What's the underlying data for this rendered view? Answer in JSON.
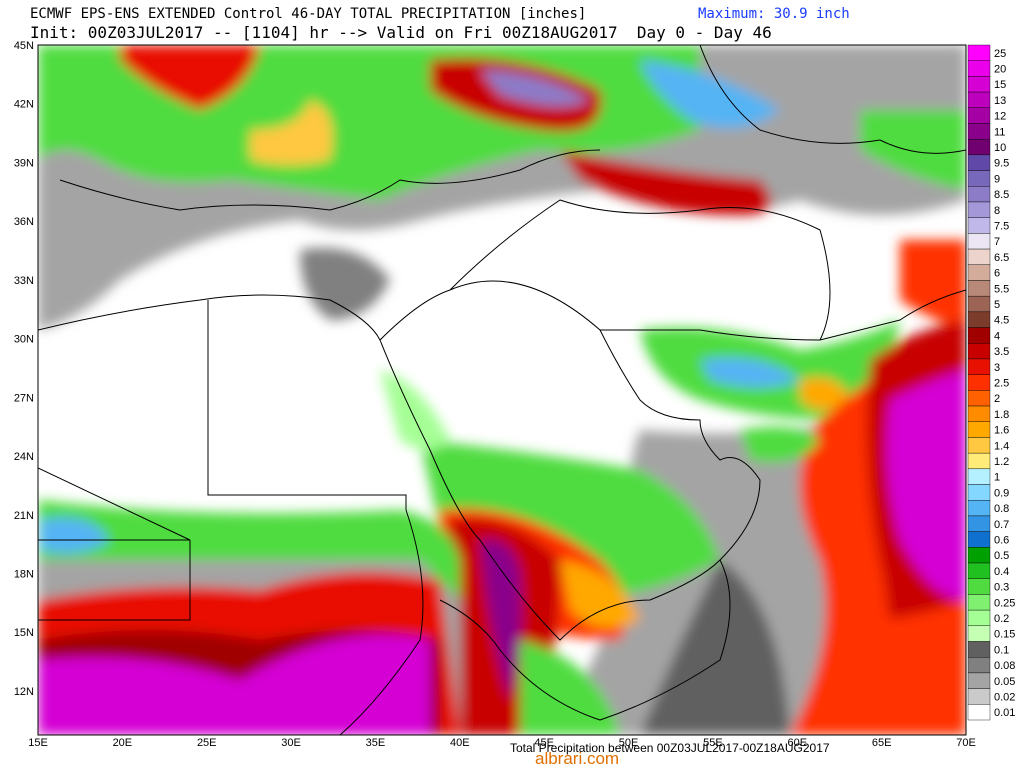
{
  "header": {
    "title": "ECMWF EPS-ENS EXTENDED Control 46-DAY TOTAL PRECIPITATION [inches]",
    "maximum": "Maximum: 30.9 inch",
    "init": "Init: 00Z03JUL2017 -- [1104] hr --> Valid on Fri 00Z18AUG2017  Day 0 - Day 46"
  },
  "map": {
    "lat_labels": [
      "45N",
      "42N",
      "39N",
      "36N",
      "33N",
      "30N",
      "27N",
      "24N",
      "21N",
      "18N",
      "15N",
      "12N"
    ],
    "lon_labels": [
      "15E",
      "20E",
      "25E",
      "30E",
      "35E",
      "40E",
      "45E",
      "50E",
      "55E",
      "60E",
      "65E",
      "70E"
    ]
  },
  "legend": {
    "levels": [
      {
        "label": "25",
        "color": "#ff00ff"
      },
      {
        "label": "20",
        "color": "#ea00ea"
      },
      {
        "label": "15",
        "color": "#d400d4"
      },
      {
        "label": "13",
        "color": "#bc00bc"
      },
      {
        "label": "12",
        "color": "#a400a4"
      },
      {
        "label": "11",
        "color": "#8a008a"
      },
      {
        "label": "10",
        "color": "#700070"
      },
      {
        "label": "9.5",
        "color": "#6048a8"
      },
      {
        "label": "9",
        "color": "#7868bc"
      },
      {
        "label": "8.5",
        "color": "#8c7cc8"
      },
      {
        "label": "8",
        "color": "#a498d8"
      },
      {
        "label": "7.5",
        "color": "#c0b8e8"
      },
      {
        "label": "7",
        "color": "#ece6f4"
      },
      {
        "label": "6.5",
        "color": "#ecd4cc"
      },
      {
        "label": "6",
        "color": "#d4ac9c"
      },
      {
        "label": "5.5",
        "color": "#b88878"
      },
      {
        "label": "5",
        "color": "#9c6454"
      },
      {
        "label": "4.5",
        "color": "#7c3c2c"
      },
      {
        "label": "4",
        "color": "#a00000"
      },
      {
        "label": "3.5",
        "color": "#c80000"
      },
      {
        "label": "3",
        "color": "#e81000"
      },
      {
        "label": "2.5",
        "color": "#ff3000"
      },
      {
        "label": "2",
        "color": "#ff6000"
      },
      {
        "label": "1.8",
        "color": "#ff8c00"
      },
      {
        "label": "1.6",
        "color": "#ffa800"
      },
      {
        "label": "1.4",
        "color": "#ffc840"
      },
      {
        "label": "1.2",
        "color": "#ffec78"
      },
      {
        "label": "1",
        "color": "#b4f0ff"
      },
      {
        "label": "0.9",
        "color": "#84d8ff"
      },
      {
        "label": "0.8",
        "color": "#54b4f4"
      },
      {
        "label": "0.7",
        "color": "#3494e4"
      },
      {
        "label": "0.6",
        "color": "#1070d0"
      },
      {
        "label": "0.5",
        "color": "#00a000"
      },
      {
        "label": "0.4",
        "color": "#20c020"
      },
      {
        "label": "0.3",
        "color": "#50dc40"
      },
      {
        "label": "0.25",
        "color": "#80f070"
      },
      {
        "label": "0.2",
        "color": "#a4ff94"
      },
      {
        "label": "0.15",
        "color": "#c4ffb4"
      },
      {
        "label": "0.1",
        "color": "#606060"
      },
      {
        "label": "0.08",
        "color": "#808080"
      },
      {
        "label": "0.05",
        "color": "#a4a4a4"
      },
      {
        "label": "0.02",
        "color": "#cacaca"
      },
      {
        "label": "0.01",
        "color": "#ffffff"
      }
    ]
  },
  "footer": {
    "period": "Total Precipitation between 00Z03JUL2017-00Z18AUG2017",
    "watermark": "albrari.com"
  }
}
